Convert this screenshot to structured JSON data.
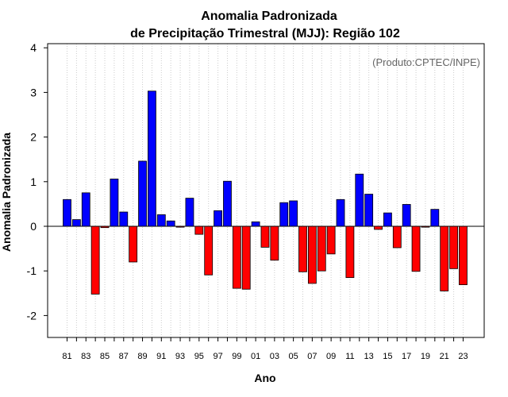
{
  "chart_data": {
    "type": "bar",
    "title": "Anomalia Padronizada",
    "subtitle": "de Precipitação Trimestral (MJJ): Região 102",
    "xlabel": "Ano",
    "ylabel": "Anomalia Padronizada",
    "credit": "(Produto:CPTEC/INPE)",
    "ylim": [
      -2.5,
      4.1
    ],
    "yticks": [
      -2,
      -1,
      0,
      1,
      2,
      3,
      4
    ],
    "grid": "vertical dotted",
    "legend": "none",
    "xtick_labels": [
      "81",
      "83",
      "85",
      "87",
      "89",
      "91",
      "93",
      "95",
      "97",
      "99",
      "01",
      "03",
      "05",
      "07",
      "09",
      "11",
      "13",
      "15",
      "17",
      "19",
      "21",
      "23"
    ],
    "categories": [
      "1981",
      "1982",
      "1983",
      "1984",
      "1985",
      "1986",
      "1987",
      "1988",
      "1989",
      "1990",
      "1991",
      "1992",
      "1993",
      "1994",
      "1995",
      "1996",
      "1997",
      "1998",
      "1999",
      "2000",
      "2001",
      "2002",
      "2003",
      "2004",
      "2005",
      "2006",
      "2007",
      "2008",
      "2009",
      "2010",
      "2011",
      "2012",
      "2013",
      "2014",
      "2015",
      "2016",
      "2017",
      "2018",
      "2019",
      "2020",
      "2021",
      "2022",
      "2023"
    ],
    "values": [
      0.6,
      0.15,
      0.75,
      -1.52,
      -0.03,
      1.06,
      0.32,
      -0.8,
      1.46,
      3.03,
      0.26,
      0.12,
      -0.02,
      0.63,
      -0.18,
      -1.09,
      0.35,
      1.01,
      -1.39,
      -1.41,
      0.1,
      -0.47,
      -0.76,
      0.53,
      0.57,
      -1.02,
      -1.28,
      -1.0,
      -0.62,
      0.6,
      -1.15,
      1.17,
      0.72,
      -0.07,
      0.3,
      -0.48,
      0.49,
      -1.01,
      -0.02,
      0.38,
      -1.45,
      -0.95,
      -1.31
    ],
    "colors": {
      "positive": "#0000ff",
      "negative": "#ff0000",
      "zero_line": "#000000",
      "grid": "#cccccc"
    }
  }
}
